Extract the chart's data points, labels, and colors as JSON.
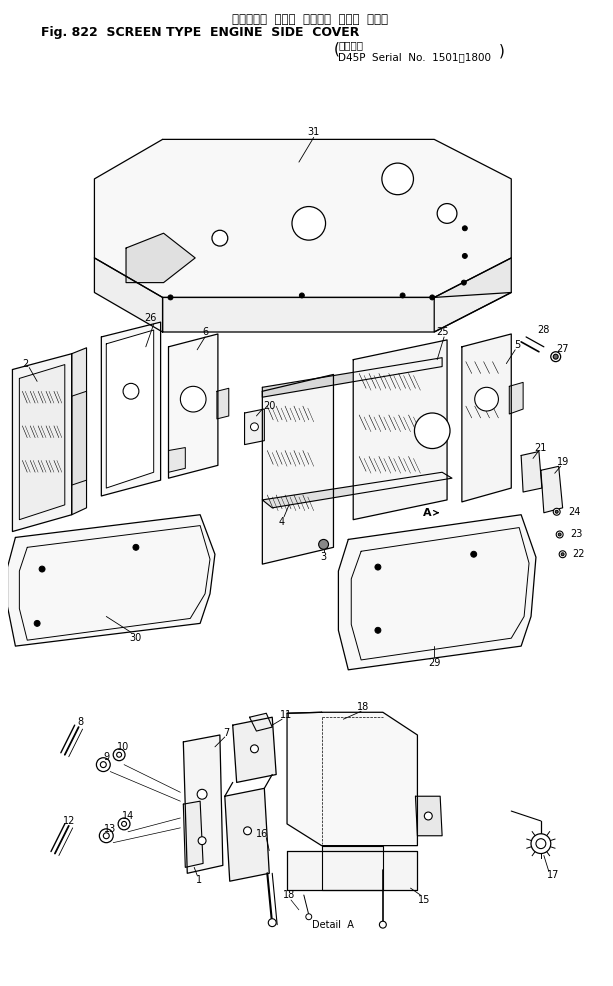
{
  "title_japanese": "スクリーン  タイプ  エンジン  サイド  カバー",
  "title_line1": "Fig. 822  SCREEN TYPE  ENGINE  SIDE  COVER",
  "subtitle_line1": "適用号機",
  "subtitle_line2": "D45P  Serial  No.  1501～1800",
  "bg_color": "#ffffff"
}
